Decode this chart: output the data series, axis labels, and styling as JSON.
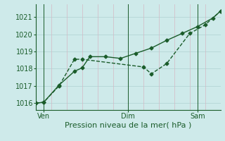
{
  "title": "Pression niveau de la mer( hPa )",
  "bg_color": "#ceeaea",
  "grid_color_h": "#b8d8d8",
  "grid_color_v": "#d4b8c4",
  "line_color": "#1a5c2a",
  "line1_x": [
    0,
    0.5,
    1.5,
    2.5,
    3.0,
    7.0,
    7.5,
    8.5,
    10.0,
    11.0,
    12.0
  ],
  "line1_y": [
    1016.0,
    1016.05,
    1017.0,
    1018.55,
    1018.55,
    1018.1,
    1017.7,
    1018.3,
    1020.05,
    1020.55,
    1021.35
  ],
  "line2_x": [
    0,
    0.5,
    1.5,
    2.5,
    3.0,
    3.5,
    4.5,
    5.5,
    6.5,
    7.5,
    8.5,
    9.5,
    10.5,
    11.5,
    12.0
  ],
  "line2_y": [
    1016.0,
    1016.05,
    1017.05,
    1017.85,
    1018.05,
    1018.7,
    1018.7,
    1018.6,
    1018.9,
    1019.2,
    1019.65,
    1020.05,
    1020.45,
    1020.95,
    1021.35
  ],
  "xlim": [
    0,
    12
  ],
  "ylim": [
    1015.6,
    1021.75
  ],
  "yticks": [
    1016,
    1017,
    1018,
    1019,
    1020,
    1021
  ],
  "xtick_positions": [
    0.5,
    6.0,
    10.5
  ],
  "xtick_labels": [
    "Ven",
    "Dim",
    "Sam"
  ],
  "vline_positions": [
    0.5,
    6.0,
    10.5
  ],
  "hgrid_positions": [
    1016,
    1017,
    1018,
    1019,
    1020,
    1021
  ],
  "vgrid_positions": [
    0,
    1,
    2,
    3,
    4,
    5,
    6,
    7,
    8,
    9,
    10,
    11,
    12
  ],
  "fontsize": 7,
  "marker_size": 2.5,
  "line_width": 1.0
}
